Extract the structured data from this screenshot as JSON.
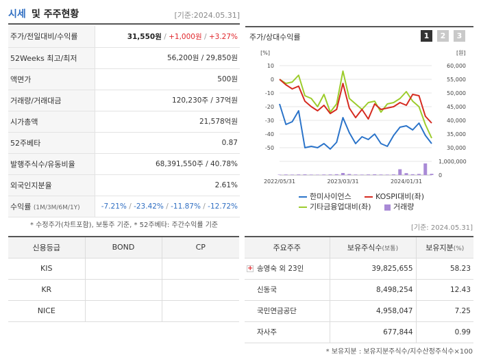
{
  "header": {
    "title_accent": "시세",
    "title_rest": "및 주주현황",
    "date": "[기준:2024.05.31]"
  },
  "summary": {
    "rows": [
      {
        "label": "주가/전일대비/수익률",
        "price": "31,550원",
        "sep1": " / ",
        "change": "+1,000원",
        "sep2": " / ",
        "rate": "+3.27%"
      },
      {
        "label": "52Weeks 최고/최저",
        "value": "56,200원 / 29,850원"
      },
      {
        "label": "액면가",
        "value": "500원"
      },
      {
        "label": "거래량/거래대금",
        "value": "120,230주 / 37억원"
      },
      {
        "label": "시가총액",
        "value": "21,578억원"
      },
      {
        "label": "52주베타",
        "value": "0.87"
      },
      {
        "label": "발행주식수/유동비율",
        "value": "68,391,550주 / 40.78%"
      },
      {
        "label": "외국인지분율",
        "value": "2.61%"
      },
      {
        "label": "수익률",
        "label_small": "(1M/3M/6M/1Y)",
        "r1": "-7.21%",
        "r2": "-23.42%",
        "r3": "-11.87%",
        "r4": "-12.72%",
        "sep": " / "
      }
    ],
    "note": "* 수정주가(차트포함), 보통주 기준, * 52주베타: 주간수익률 기준"
  },
  "chart": {
    "title": "주가/상대수익률",
    "pages": [
      "1",
      "2",
      "3"
    ],
    "left_unit": "[%]",
    "right_unit": "[원]",
    "left_ticks": [
      "10",
      "0",
      "-10",
      "-20",
      "-30",
      "-40",
      "-50"
    ],
    "right_ticks": [
      "60,000",
      "55,000",
      "50,000",
      "45,000",
      "40,000",
      "35,000",
      "30,000"
    ],
    "volume_tick_top": "1,000,000",
    "volume_tick_bottom": "0",
    "x_ticks": [
      "2022/05/31",
      "2023/03/31",
      "2024/01/31"
    ],
    "legend": {
      "s1": "한미사이언스",
      "s2": "KOSPI대비(좌)",
      "s3": "기타금융업대비(좌)",
      "s4": "거래량"
    },
    "colors": {
      "s1": "#2a73c9",
      "s2": "#d52a1f",
      "s3": "#9ccc2c",
      "s4": "#a98ad6"
    }
  },
  "chart_data": {
    "type": "line",
    "x": [
      "2022/05",
      "2022/06",
      "2022/07",
      "2022/08",
      "2022/09",
      "2022/10",
      "2022/11",
      "2022/12",
      "2023/01",
      "2023/02",
      "2023/03",
      "2023/04",
      "2023/05",
      "2023/06",
      "2023/07",
      "2023/08",
      "2023/09",
      "2023/10",
      "2023/11",
      "2023/12",
      "2024/01",
      "2024/02",
      "2024/03",
      "2024/04",
      "2024/05"
    ],
    "series": [
      {
        "name": "한미사이언스",
        "axis": "right",
        "values": [
          46000,
          38500,
          39500,
          43500,
          30000,
          30500,
          30000,
          31500,
          29500,
          32000,
          41000,
          35500,
          31500,
          34000,
          33000,
          35000,
          31500,
          30500,
          34500,
          37500,
          38000,
          36500,
          39000,
          34500,
          31500
        ]
      },
      {
        "name": "KOSPI대비(좌)",
        "axis": "left",
        "values": [
          0,
          -4,
          -7,
          -5,
          -16,
          -20,
          -23,
          -19,
          -25,
          -22,
          -3,
          -21,
          -28,
          -22,
          -29,
          -18,
          -22,
          -21,
          -20,
          -17,
          -19,
          -11,
          -12,
          -27,
          -32
        ]
      },
      {
        "name": "기타금융업대비(좌)",
        "axis": "left",
        "values": [
          0,
          -3,
          -2,
          3,
          -12,
          -14,
          -20,
          -11,
          -24,
          -18,
          6,
          -14,
          -18,
          -22,
          -17,
          -16,
          -24,
          -18,
          -17,
          -14,
          -9,
          -16,
          -20,
          -33,
          -43
        ]
      },
      {
        "name": "거래량",
        "axis": "volume",
        "values": [
          60000,
          80000,
          70000,
          90000,
          100000,
          70000,
          60000,
          80000,
          90000,
          120000,
          300000,
          150000,
          80000,
          70000,
          90000,
          110000,
          80000,
          70000,
          100000,
          850000,
          280000,
          120000,
          160000,
          1700000,
          180000
        ]
      }
    ],
    "ylim_left": [
      -50,
      10
    ],
    "ylim_right": [
      30000,
      60000
    ],
    "ylim_volume": [
      0,
      2000000
    ]
  },
  "date_right": "[기준: 2024.05.31]",
  "credit": {
    "headers": [
      "신용등급",
      "BOND",
      "CP"
    ],
    "rows": [
      [
        "KIS",
        "",
        ""
      ],
      [
        "KR",
        "",
        ""
      ],
      [
        "NICE",
        "",
        ""
      ]
    ]
  },
  "holders": {
    "headers": {
      "name": "주요주주",
      "shares": "보유주식수",
      "shares_small": "(보통)",
      "ratio": "보유지분",
      "ratio_small": "(%)"
    },
    "rows": [
      {
        "name": "송영숙 외 23인",
        "shares": "39,825,655",
        "ratio": "58.23",
        "expandable": "+"
      },
      {
        "name": "신동국",
        "shares": "8,498,254",
        "ratio": "12.43"
      },
      {
        "name": "국민연금공단",
        "shares": "4,958,047",
        "ratio": "7.25"
      },
      {
        "name": "자사주",
        "shares": "677,844",
        "ratio": "0.99"
      }
    ],
    "note": "* 보유지분 : 보유지분주식수/지수산정주식수×100"
  }
}
